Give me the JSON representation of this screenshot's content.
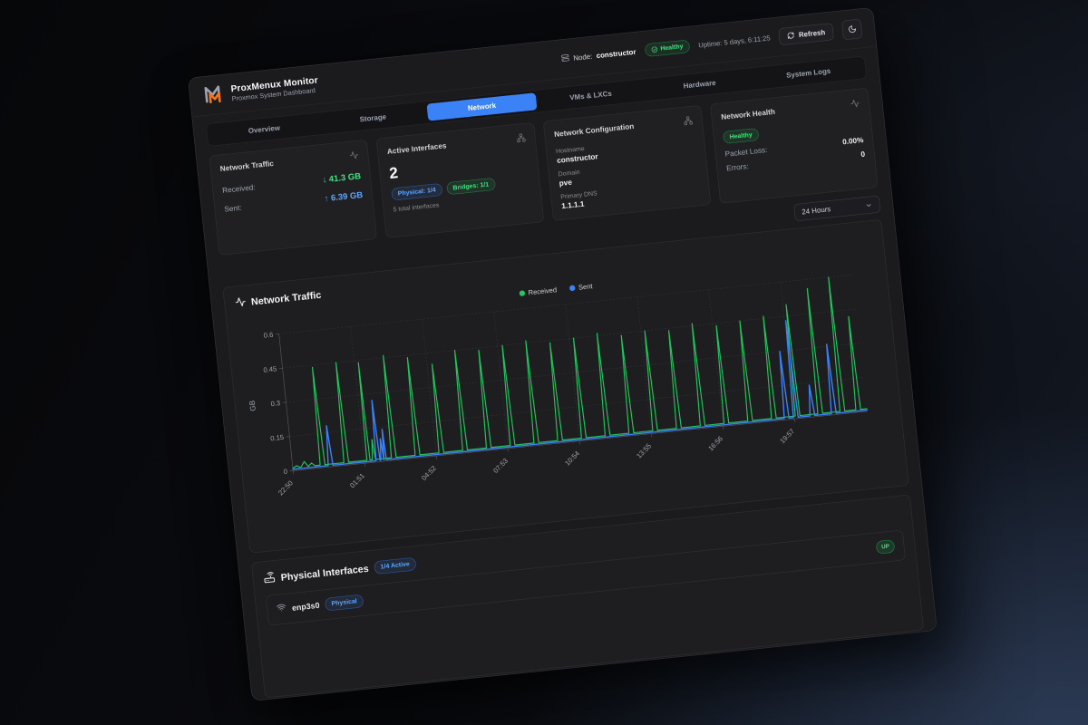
{
  "colors": {
    "accent": "#3b82f6",
    "green": "#22c55e",
    "blue": "#3b82f6"
  },
  "header": {
    "app_title": "ProxMenux Monitor",
    "app_subtitle": "Proxmox System Dashboard",
    "node_label": "Node:",
    "node_name": "constructor",
    "health_badge": "Healthy",
    "uptime": "Uptime: 5 days, 6:11:25",
    "refresh_label": "Refresh"
  },
  "tabs": {
    "items": [
      {
        "label": "Overview"
      },
      {
        "label": "Storage"
      },
      {
        "label": "Network"
      },
      {
        "label": "VMs & LXCs"
      },
      {
        "label": "Hardware"
      },
      {
        "label": "System Logs"
      }
    ],
    "active": "Network"
  },
  "cards": {
    "network_traffic": {
      "title": "Network Traffic",
      "received_label": "Received:",
      "received_value": "↓ 41.3 GB",
      "sent_label": "Sent:",
      "sent_value": "↑ 6.39 GB"
    },
    "active_interfaces": {
      "title": "Active Interfaces",
      "count": "2",
      "physical_badge": "Physical: 1/4",
      "bridges_badge": "Bridges: 1/1",
      "total_note": "5 total interfaces"
    },
    "network_config": {
      "title": "Network Configuration",
      "hostname_label": "Hostname",
      "hostname": "constructor",
      "domain_label": "Domain",
      "domain": "pve",
      "dns_label": "Primary DNS",
      "dns": "1.1.1.1"
    },
    "network_health": {
      "title": "Network Health",
      "status": "Healthy",
      "packet_loss_label": "Packet Loss:",
      "packet_loss": "0.00%",
      "errors_label": "Errors:",
      "errors": "0"
    }
  },
  "time_range_select": {
    "value": "24 Hours"
  },
  "chart_section": {
    "title": "Network Traffic"
  },
  "chart_data": {
    "type": "line",
    "title": "Network Traffic",
    "ylabel": "GB",
    "ylim": [
      0,
      0.6
    ],
    "y_ticks": [
      0,
      0.15,
      0.3,
      0.45,
      0.6
    ],
    "x_tick_labels": [
      "22:50",
      "01:51",
      "04:52",
      "07:53",
      "10:54",
      "13:55",
      "16:56",
      "19:57"
    ],
    "x_tick_minutes": [
      0,
      181,
      362,
      543,
      724,
      905,
      1086,
      1267
    ],
    "duration_minutes": 1450,
    "grid": "dashed",
    "legend_position": "top-center",
    "series": [
      {
        "name": "Received",
        "color": "#22c55e",
        "baseline_gb": 0.012,
        "spikes_t_min_gb": [
          [
            10,
            0.02,
            8
          ],
          [
            30,
            0.035,
            9
          ],
          [
            48,
            0.025,
            8
          ],
          [
            75,
            0.44
          ],
          [
            135,
            0.45
          ],
          [
            191,
            0.44,
            4
          ],
          [
            205,
            0.1,
            4
          ],
          [
            255,
            0.46
          ],
          [
            315,
            0.44
          ],
          [
            375,
            0.4
          ],
          [
            435,
            0.45
          ],
          [
            495,
            0.44
          ],
          [
            555,
            0.45
          ],
          [
            615,
            0.46
          ],
          [
            675,
            0.44
          ],
          [
            735,
            0.45
          ],
          [
            795,
            0.46
          ],
          [
            855,
            0.44
          ],
          [
            915,
            0.45
          ],
          [
            975,
            0.44
          ],
          [
            1035,
            0.46
          ],
          [
            1095,
            0.44
          ],
          [
            1155,
            0.45
          ],
          [
            1215,
            0.46
          ],
          [
            1275,
            0.5
          ],
          [
            1332,
            0.56
          ],
          [
            1388,
            0.6
          ],
          [
            1428,
            0.42
          ]
        ]
      },
      {
        "name": "Sent",
        "color": "#3b82f6",
        "baseline_gb": 0.006,
        "spikes_t_min_gb": [
          [
            95,
            0.18
          ],
          [
            215,
            0.27,
            5
          ],
          [
            226,
            0.1,
            4
          ],
          [
            233,
            0.14,
            3
          ],
          [
            1247,
            0.3
          ],
          [
            1270,
            0.43
          ],
          [
            1312,
            0.14
          ],
          [
            1366,
            0.31
          ]
        ]
      }
    ]
  },
  "interfaces": {
    "title": "Physical Interfaces",
    "active_badge": "1/4 Active",
    "rows": [
      {
        "name": "enp3s0",
        "type_badge": "Physical",
        "status": "UP"
      }
    ]
  }
}
